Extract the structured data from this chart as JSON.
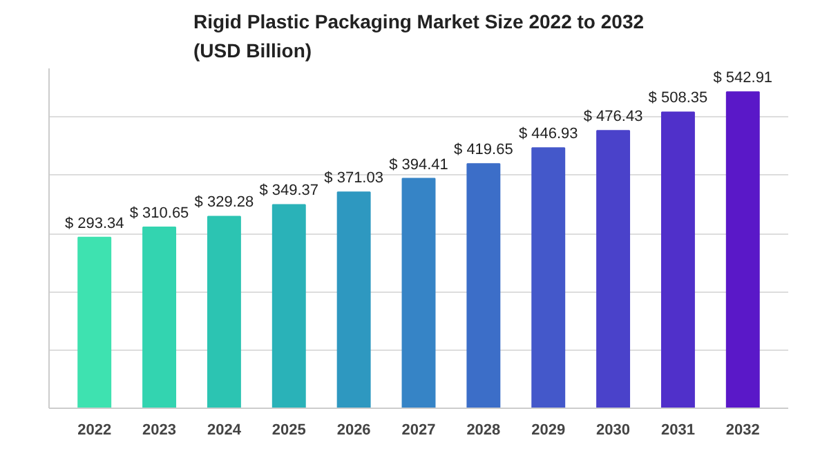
{
  "chart_data": {
    "type": "bar",
    "title": "Rigid Plastic Packaging Market Size 2022 to 2032\n(USD Billion)",
    "categories": [
      "2022",
      "2023",
      "2024",
      "2025",
      "2026",
      "2027",
      "2028",
      "2029",
      "2030",
      "2031",
      "2032"
    ],
    "values": [
      293.34,
      310.65,
      329.28,
      349.37,
      371.03,
      394.41,
      419.65,
      446.93,
      476.43,
      508.35,
      542.91
    ],
    "value_labels": [
      "$ 293.34",
      "$ 310.65",
      "$ 329.28",
      "$ 349.37",
      "$ 371.03",
      "$ 394.41",
      "$ 419.65",
      "$ 446.93",
      "$ 476.43",
      "$ 508.35",
      "$ 542.91"
    ],
    "colors": [
      "#3ee2b0",
      "#33d4b0",
      "#2cc4b2",
      "#2ab2b8",
      "#2e98c0",
      "#3684c6",
      "#3c6ec8",
      "#4458ca",
      "#4a42ca",
      "#5030ca",
      "#5a18c8"
    ],
    "grid": "y",
    "tick_labels": "x"
  }
}
